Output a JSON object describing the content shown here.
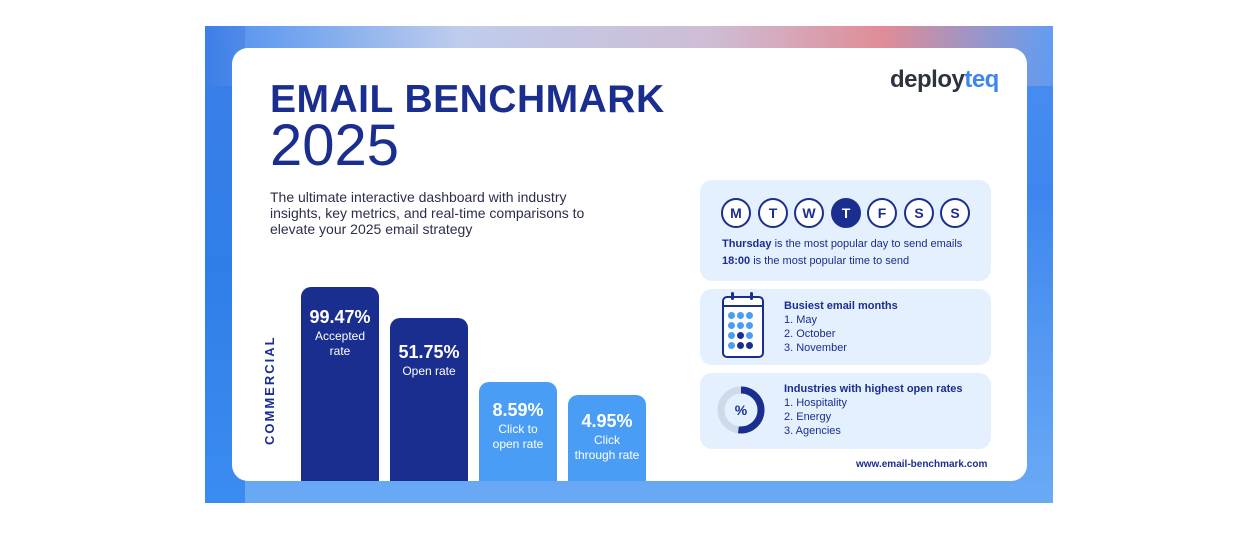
{
  "brand": {
    "logo_part1": "deploy",
    "logo_part2": "teq",
    "accent_dark": "#1a2e8f",
    "accent_light": "#4a9df5",
    "frame_blue": "#3e86ef"
  },
  "header": {
    "title_line1": "EMAIL BENCHMARK",
    "title_line2": "2025",
    "subtitle": "The ultimate interactive dashboard with industry insights, key metrics, and real-time comparisons to elevate your 2025 email strategy"
  },
  "metrics": {
    "section_label": "COMMERCIAL",
    "items": [
      {
        "value": "99.47%",
        "label_line1": "Accepted",
        "label_line2": "rate",
        "color": "#1a2e8f"
      },
      {
        "value": "51.75%",
        "label_line1": "Open rate",
        "label_line2": "",
        "color": "#1a2e8f"
      },
      {
        "value": "8.59%",
        "label_line1": "Click to",
        "label_line2": "open rate",
        "color": "#4a9df5"
      },
      {
        "value": "4.95%",
        "label_line1": "Click",
        "label_line2": "through rate",
        "color": "#4a9df5"
      }
    ]
  },
  "days_panel": {
    "days": [
      "M",
      "T",
      "W",
      "T",
      "F",
      "S",
      "S"
    ],
    "active_index": 3,
    "popular_day_strong": "Thursday",
    "popular_day_rest": " is the most popular day to send emails",
    "popular_time_strong": "18:00",
    "popular_time_rest": " is the most popular time to send"
  },
  "months_panel": {
    "title": "Busiest email months",
    "items": [
      "1.  May",
      "2. October",
      "3. November"
    ],
    "icon": "calendar-icon"
  },
  "industries_panel": {
    "title": "Industries with highest open rates",
    "items": [
      "1.  Hospitality",
      "2. Energy",
      "3. Agencies"
    ],
    "icon_symbol": "%",
    "donut_fraction": 0.52
  },
  "footer": {
    "url": "www.email-benchmark.com"
  }
}
